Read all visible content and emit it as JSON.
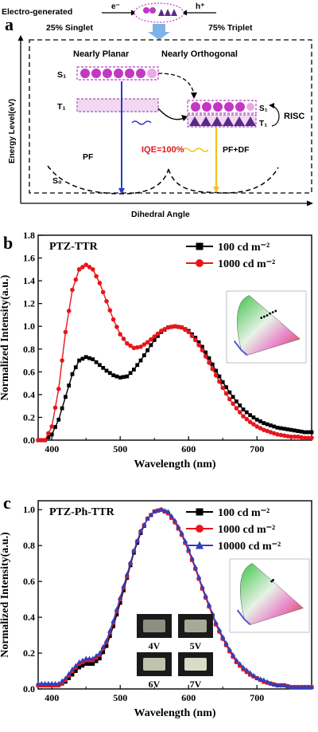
{
  "panel_a": {
    "letter": "a",
    "electro_generated": "Electro-generated",
    "e_label": "e⁻",
    "h_label": "h⁺",
    "singlet": "25% Singlet",
    "triplet": "75% Triplet",
    "nearly_planar": "Nearly Planar",
    "nearly_orthogonal": "Nearly Orthogonal",
    "s1": "S₁",
    "t1": "T₁",
    "s0": "S₀",
    "pf": "PF",
    "iqe": "IQE=100%",
    "pf_df": "PF+DF",
    "risc": "RISC",
    "y_axis": "Energy Level(eV)",
    "x_axis": "Dihedral Angle",
    "colors": {
      "magenta": "#c238c4",
      "purple": "#5b2a86",
      "blue": "#2a3bc8",
      "orange": "#f1c21b",
      "red": "#e8161b"
    }
  },
  "chart_data": [
    {
      "panel": "b",
      "type": "line",
      "title": "PTZ-TTR",
      "xlabel": "Wavelength (nm)",
      "ylabel": "Normalized Intensity(a.u.)",
      "xlim": [
        380,
        780
      ],
      "ylim": [
        0,
        1.8
      ],
      "xticks": [
        "400",
        "500",
        "600",
        "700"
      ],
      "yticks": [
        "0.0",
        "0.2",
        "0.4",
        "0.6",
        "0.8",
        "1.0",
        "1.2",
        "1.4",
        "1.6",
        "1.8"
      ],
      "legend_position": "top-right",
      "series": [
        {
          "name": "100 cd m⁻²",
          "color": "#000000",
          "marker": "square",
          "x": [
            380,
            390,
            400,
            410,
            420,
            430,
            440,
            450,
            460,
            470,
            480,
            490,
            500,
            510,
            520,
            530,
            540,
            550,
            560,
            570,
            580,
            590,
            600,
            610,
            620,
            630,
            640,
            650,
            660,
            670,
            680,
            690,
            700,
            710,
            720,
            730,
            740,
            750,
            760,
            770,
            780
          ],
          "y": [
            0.0,
            0.0,
            0.05,
            0.18,
            0.38,
            0.58,
            0.7,
            0.73,
            0.71,
            0.66,
            0.61,
            0.57,
            0.55,
            0.56,
            0.62,
            0.7,
            0.79,
            0.88,
            0.95,
            0.99,
            1.0,
            0.99,
            0.96,
            0.9,
            0.82,
            0.72,
            0.61,
            0.51,
            0.42,
            0.34,
            0.27,
            0.22,
            0.18,
            0.15,
            0.13,
            0.11,
            0.1,
            0.09,
            0.08,
            0.07,
            0.07
          ]
        },
        {
          "name": "1000 cd m⁻²",
          "color": "#e8161b",
          "marker": "circle",
          "x": [
            380,
            390,
            400,
            410,
            420,
            430,
            440,
            450,
            460,
            470,
            480,
            490,
            500,
            510,
            520,
            530,
            540,
            550,
            560,
            570,
            580,
            590,
            600,
            610,
            620,
            630,
            640,
            650,
            660,
            670,
            680,
            690,
            700,
            710,
            720,
            730,
            740,
            750,
            760,
            770,
            780
          ],
          "y": [
            0.0,
            0.0,
            0.12,
            0.45,
            0.95,
            1.32,
            1.5,
            1.54,
            1.5,
            1.38,
            1.22,
            1.06,
            0.93,
            0.85,
            0.81,
            0.82,
            0.86,
            0.91,
            0.96,
            0.99,
            1.0,
            0.99,
            0.95,
            0.88,
            0.79,
            0.68,
            0.57,
            0.46,
            0.36,
            0.28,
            0.21,
            0.16,
            0.12,
            0.09,
            0.07,
            0.05,
            0.04,
            0.03,
            0.03,
            0.02,
            0.02
          ]
        }
      ]
    },
    {
      "panel": "c",
      "type": "line",
      "title": "PTZ-Ph-TTR",
      "xlabel": "Wavelength (nm)",
      "ylabel": "Normalized Intensity(a.u.)",
      "xlim": [
        380,
        780
      ],
      "ylim": [
        0,
        1.05
      ],
      "xticks": [
        "400",
        "500",
        "600",
        "700"
      ],
      "yticks": [
        "0.0",
        "0.2",
        "0.4",
        "0.6",
        "0.8",
        "1.0"
      ],
      "legend_position": "top-right",
      "inset_labels": [
        "4V",
        "5V",
        "6V",
        "7V"
      ],
      "series": [
        {
          "name": "100 cd m⁻²",
          "color": "#000000",
          "marker": "square",
          "x": [
            380,
            390,
            400,
            410,
            420,
            430,
            440,
            450,
            460,
            470,
            480,
            490,
            500,
            510,
            520,
            530,
            540,
            550,
            560,
            570,
            580,
            590,
            600,
            610,
            620,
            630,
            640,
            650,
            660,
            670,
            680,
            690,
            700,
            710,
            720,
            730,
            740,
            750,
            760,
            770,
            780
          ],
          "y": [
            0.02,
            0.02,
            0.02,
            0.02,
            0.04,
            0.08,
            0.12,
            0.14,
            0.14,
            0.17,
            0.24,
            0.35,
            0.48,
            0.62,
            0.76,
            0.87,
            0.95,
            0.99,
            1.0,
            0.98,
            0.93,
            0.86,
            0.77,
            0.67,
            0.56,
            0.46,
            0.36,
            0.28,
            0.21,
            0.15,
            0.11,
            0.08,
            0.06,
            0.04,
            0.03,
            0.02,
            0.02,
            0.01,
            0.01,
            0.01,
            0.01
          ]
        },
        {
          "name": "1000 cd m⁻²",
          "color": "#e8161b",
          "marker": "circle",
          "x": [
            380,
            390,
            400,
            410,
            420,
            430,
            440,
            450,
            460,
            470,
            480,
            490,
            500,
            510,
            520,
            530,
            540,
            550,
            560,
            570,
            580,
            590,
            600,
            610,
            620,
            630,
            640,
            650,
            660,
            670,
            680,
            690,
            700,
            710,
            720,
            730,
            740,
            750,
            760,
            770,
            780
          ],
          "y": [
            0.02,
            0.02,
            0.02,
            0.02,
            0.05,
            0.1,
            0.14,
            0.16,
            0.16,
            0.19,
            0.26,
            0.37,
            0.5,
            0.63,
            0.77,
            0.88,
            0.95,
            0.99,
            1.0,
            0.98,
            0.93,
            0.86,
            0.77,
            0.67,
            0.56,
            0.46,
            0.36,
            0.28,
            0.21,
            0.15,
            0.11,
            0.08,
            0.06,
            0.04,
            0.03,
            0.02,
            0.02,
            0.01,
            0.01,
            0.01,
            0.01
          ]
        },
        {
          "name": "10000 cd m⁻²",
          "color": "#2f3fbf",
          "marker": "triangle",
          "x": [
            380,
            390,
            400,
            410,
            420,
            430,
            440,
            450,
            460,
            470,
            480,
            490,
            500,
            510,
            520,
            530,
            540,
            550,
            560,
            570,
            580,
            590,
            600,
            610,
            620,
            630,
            640,
            650,
            660,
            670,
            680,
            690,
            700,
            710,
            720,
            730,
            740,
            750,
            760,
            770,
            780
          ],
          "y": [
            0.03,
            0.03,
            0.03,
            0.03,
            0.06,
            0.11,
            0.15,
            0.17,
            0.17,
            0.2,
            0.27,
            0.38,
            0.51,
            0.64,
            0.77,
            0.88,
            0.95,
            0.99,
            1.0,
            0.99,
            0.94,
            0.87,
            0.78,
            0.68,
            0.57,
            0.47,
            0.37,
            0.29,
            0.22,
            0.16,
            0.12,
            0.09,
            0.06,
            0.05,
            0.03,
            0.02,
            0.02,
            0.01,
            0.01,
            0.01,
            0.01
          ]
        }
      ]
    }
  ]
}
